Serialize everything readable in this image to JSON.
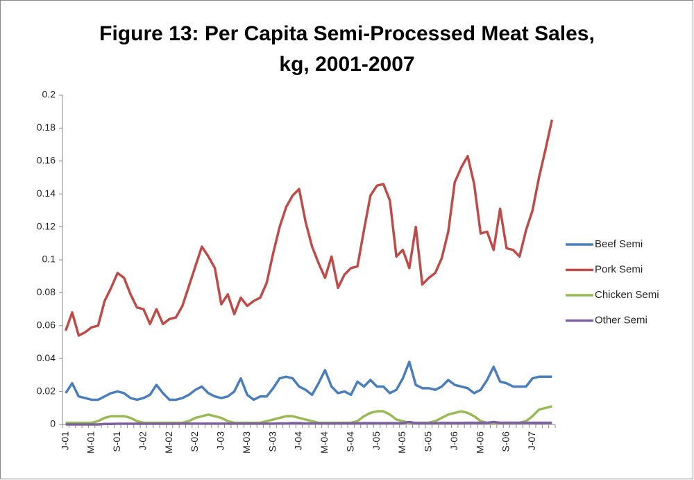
{
  "chart_data": {
    "type": "line",
    "title": "Figure 13: Per Capita Semi-Processed Meat Sales, kg, 2001-2007",
    "categories": [
      "J-01",
      null,
      null,
      null,
      "M-01",
      null,
      null,
      null,
      "S-01",
      null,
      null,
      null,
      "J-02",
      null,
      null,
      null,
      "M-02",
      null,
      null,
      null,
      "S-02",
      null,
      null,
      null,
      "J-03",
      null,
      null,
      null,
      "M-03",
      null,
      null,
      null,
      "S-03",
      null,
      null,
      null,
      "J-04",
      null,
      null,
      null,
      "M-04",
      null,
      null,
      null,
      "S-04",
      null,
      null,
      null,
      "J-05",
      null,
      null,
      null,
      "M-05",
      null,
      null,
      null,
      "S-05",
      null,
      null,
      null,
      "J-06",
      null,
      null,
      null,
      "M-06",
      null,
      null,
      null,
      "S-06",
      null,
      null,
      null,
      "J-07",
      null,
      null,
      null
    ],
    "series": [
      {
        "name": "Beef Semi",
        "color": "#4a7ebb",
        "values": [
          0.019,
          0.025,
          0.017,
          0.016,
          0.015,
          0.015,
          0.017,
          0.019,
          0.02,
          0.019,
          0.016,
          0.015,
          0.016,
          0.018,
          0.024,
          0.019,
          0.015,
          0.015,
          0.016,
          0.018,
          0.021,
          0.023,
          0.019,
          0.017,
          0.016,
          0.017,
          0.02,
          0.028,
          0.018,
          0.015,
          0.017,
          0.017,
          0.022,
          0.028,
          0.029,
          0.028,
          0.023,
          0.021,
          0.018,
          0.025,
          0.033,
          0.023,
          0.019,
          0.02,
          0.018,
          0.026,
          0.023,
          0.027,
          0.023,
          0.023,
          0.019,
          0.021,
          0.028,
          0.038,
          0.024,
          0.022,
          0.022,
          0.021,
          0.023,
          0.027,
          0.024,
          0.023,
          0.022,
          0.019,
          0.021,
          0.027,
          0.035,
          0.026,
          0.025,
          0.023,
          0.023,
          0.023,
          0.028,
          0.029,
          0.029,
          0.029
        ]
      },
      {
        "name": "Pork Semi",
        "color": "#be4b48",
        "values": [
          0.057,
          0.068,
          0.054,
          0.056,
          0.059,
          0.06,
          0.075,
          0.083,
          0.092,
          0.089,
          0.079,
          0.071,
          0.07,
          0.061,
          0.07,
          0.061,
          0.064,
          0.065,
          0.072,
          0.084,
          0.096,
          0.108,
          0.102,
          0.095,
          0.073,
          0.079,
          0.067,
          0.077,
          0.072,
          0.075,
          0.077,
          0.086,
          0.104,
          0.12,
          0.132,
          0.139,
          0.143,
          0.123,
          0.108,
          0.098,
          0.089,
          0.102,
          0.083,
          0.091,
          0.095,
          0.096,
          0.118,
          0.139,
          0.145,
          0.146,
          0.136,
          0.102,
          0.106,
          0.095,
          0.12,
          0.085,
          0.089,
          0.092,
          0.101,
          0.117,
          0.147,
          0.156,
          0.163,
          0.146,
          0.116,
          0.117,
          0.106,
          0.131,
          0.107,
          0.106,
          0.102,
          0.118,
          0.13,
          0.15,
          0.167,
          0.185
        ]
      },
      {
        "name": "Chicken Semi",
        "color": "#98b954",
        "values": [
          0.001,
          0.001,
          0.001,
          0.001,
          0.001,
          0.002,
          0.004,
          0.005,
          0.005,
          0.005,
          0.004,
          0.002,
          0.001,
          0.001,
          0.001,
          0.001,
          0.001,
          0.001,
          0.001,
          0.002,
          0.004,
          0.005,
          0.006,
          0.005,
          0.004,
          0.002,
          0.001,
          0.001,
          0.001,
          0.001,
          0.001,
          0.002,
          0.003,
          0.004,
          0.005,
          0.005,
          0.004,
          0.003,
          0.002,
          0.001,
          0.001,
          0.001,
          0.001,
          0.001,
          0.001,
          0.002,
          0.005,
          0.007,
          0.008,
          0.008,
          0.006,
          0.003,
          0.002,
          0.001,
          0.001,
          0.001,
          0.001,
          0.002,
          0.004,
          0.006,
          0.007,
          0.008,
          0.007,
          0.005,
          0.002,
          0.001,
          0.001,
          0.001,
          0.001,
          0.001,
          0.001,
          0.002,
          0.005,
          0.009,
          0.01,
          0.011
        ]
      },
      {
        "name": "Other Semi",
        "color": "#7d60a0",
        "values": [
          0,
          0,
          0,
          0,
          0,
          0,
          0.0003,
          0.0003,
          0.0004,
          0.0004,
          0.0004,
          0.0004,
          0.0004,
          0.0004,
          0.0004,
          0.0004,
          0.0004,
          0.0004,
          0.0005,
          0.0005,
          0.0005,
          0.0005,
          0.0005,
          0.0005,
          0.0005,
          0.0005,
          0.0005,
          0.0005,
          0.0005,
          0.0005,
          0.0005,
          0.0005,
          0.0005,
          0.0006,
          0.0006,
          0.0008,
          0.0008,
          0.0006,
          0.0006,
          0.0006,
          0.0006,
          0.0006,
          0.0006,
          0.0007,
          0.0007,
          0.0007,
          0.0008,
          0.0008,
          0.0008,
          0.0008,
          0.0008,
          0.0008,
          0.0008,
          0.0015,
          0.0008,
          0.0008,
          0.0008,
          0.0008,
          0.0009,
          0.0009,
          0.0009,
          0.0009,
          0.001,
          0.001,
          0.001,
          0.001,
          0.0015,
          0.001,
          0.001,
          0.001,
          0.001,
          0.001,
          0.001,
          0.001,
          0.001,
          0.001
        ]
      }
    ],
    "ylim": [
      0,
      0.2
    ],
    "yticks": [
      0,
      0.02,
      0.04,
      0.06,
      0.08,
      0.1,
      0.12,
      0.14,
      0.16,
      0.18,
      0.2
    ],
    "grid": false,
    "legend": "right"
  }
}
